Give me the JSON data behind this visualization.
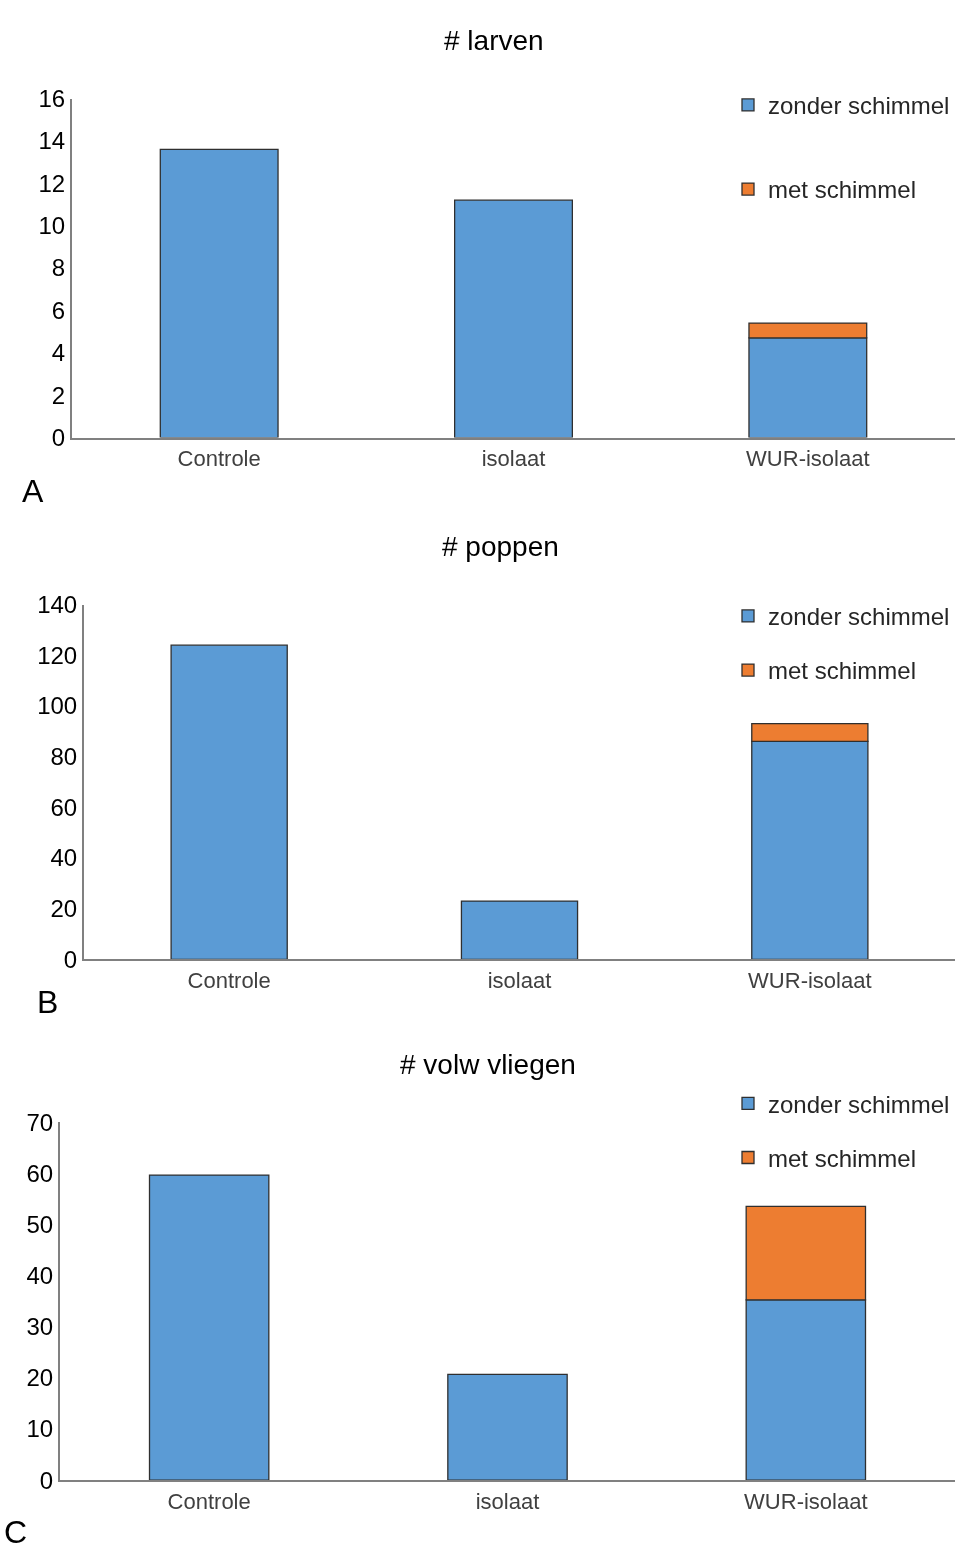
{
  "chart_data": [
    {
      "type": "bar",
      "title": "# larven",
      "categories": [
        "Controle",
        "isolaat",
        "WUR-isolaat"
      ],
      "series": [
        {
          "name": "zonder schimmel",
          "color": "#5b9bd5",
          "values": [
            13.6,
            11.2,
            4.7
          ]
        },
        {
          "name": "met schimmel",
          "color": "#ed7d31",
          "values": [
            null,
            null,
            0.7
          ]
        }
      ],
      "stacked": true,
      "ylim": [
        0,
        16
      ],
      "yticks": [
        0,
        2,
        4,
        6,
        8,
        10,
        12,
        14,
        16
      ],
      "legend": "top right",
      "annotations": [
        "A"
      ]
    },
    {
      "type": "bar",
      "title": "# poppen",
      "categories": [
        "Controle",
        "isolaat",
        "WUR-isolaat"
      ],
      "series": [
        {
          "name": "zonder schimmel",
          "color": "#5b9bd5",
          "values": [
            124,
            23,
            86
          ]
        },
        {
          "name": "met schimmel",
          "color": "#ed7d31",
          "values": [
            null,
            null,
            7
          ]
        }
      ],
      "stacked": true,
      "ylim": [
        0,
        140
      ],
      "yticks": [
        0,
        20,
        40,
        60,
        80,
        100,
        120,
        140
      ],
      "legend": "top right",
      "annotations": [
        "B"
      ]
    },
    {
      "type": "bar",
      "title": "# volw vliegen",
      "categories": [
        "Controle",
        "isolaat",
        "WUR-isolaat"
      ],
      "series": [
        {
          "name": "zonder schimmel",
          "color": "#5b9bd5",
          "values": [
            59.7,
            20.7,
            35.3
          ]
        },
        {
          "name": "met schimmel",
          "color": "#ed7d31",
          "values": [
            null,
            null,
            18.3
          ]
        }
      ],
      "stacked": true,
      "ylim": [
        0,
        70
      ],
      "yticks": [
        0,
        10,
        20,
        30,
        40,
        50,
        60,
        70
      ],
      "legend": "top right",
      "annotations": [
        "C"
      ]
    }
  ]
}
